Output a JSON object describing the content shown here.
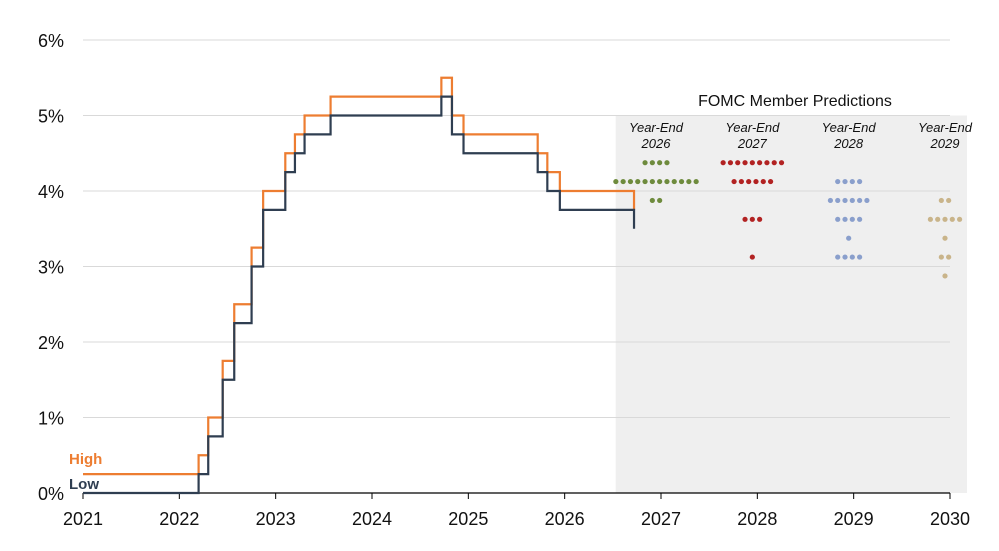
{
  "chart_data": {
    "type": "line",
    "title": "",
    "xlabel": "",
    "ylabel": "",
    "xlim": [
      2021,
      2030
    ],
    "ylim": [
      0,
      6
    ],
    "grid": true,
    "y_ticks": [
      "0%",
      "1%",
      "2%",
      "3%",
      "4%",
      "5%",
      "6%"
    ],
    "x_ticks": [
      "2021",
      "2022",
      "2023",
      "2024",
      "2025",
      "2026",
      "2027",
      "2028",
      "2029",
      "2030"
    ],
    "series": [
      {
        "name": "High",
        "color": "#ED7D31",
        "step_times": [
          2021.0,
          2022.2,
          2022.3,
          2022.45,
          2022.57,
          2022.75,
          2022.87,
          2023.1,
          2023.2,
          2023.3,
          2023.57,
          2024.72,
          2024.83,
          2024.95,
          2025.72,
          2025.82,
          2025.95,
          2026.72
        ],
        "values": [
          0.25,
          0.5,
          1.0,
          1.75,
          2.5,
          3.25,
          4.0,
          4.5,
          4.75,
          5.0,
          5.25,
          5.5,
          5.0,
          4.75,
          4.5,
          4.25,
          4.0,
          3.75,
          4.0
        ]
      },
      {
        "name": "Low",
        "color": "#2F3E51",
        "step_times": [
          2021.0,
          2022.2,
          2022.3,
          2022.45,
          2022.57,
          2022.75,
          2022.87,
          2023.1,
          2023.2,
          2023.3,
          2023.57,
          2024.72,
          2024.83,
          2024.95,
          2025.72,
          2025.82,
          2025.95,
          2026.72
        ],
        "values": [
          0.0,
          0.25,
          0.75,
          1.5,
          2.25,
          3.0,
          3.75,
          4.25,
          4.5,
          4.75,
          5.0,
          5.25,
          4.75,
          4.5,
          4.25,
          4.0,
          3.75,
          3.5,
          3.5
        ]
      }
    ],
    "projection_panel": {
      "title": "FOMC Member Predictions",
      "x_start": 2026.53,
      "groups": [
        {
          "label_line1": "Year-End",
          "label_line2": "2026",
          "x": 2027.0,
          "color": "#6E8B3D",
          "dots": [
            {
              "rate": 4.375,
              "count": 4
            },
            {
              "rate": 4.125,
              "count": 12
            },
            {
              "rate": 3.875,
              "count": 2
            }
          ]
        },
        {
          "label_line1": "Year-End",
          "label_line2": "2027",
          "x": 2028.0,
          "color": "#B22222",
          "dots": [
            {
              "rate": 4.375,
              "count": 9
            },
            {
              "rate": 4.125,
              "count": 6
            },
            {
              "rate": 3.625,
              "count": 3
            },
            {
              "rate": 3.125,
              "count": 1
            }
          ]
        },
        {
          "label_line1": "Year-End",
          "label_line2": "2028",
          "x": 2029.0,
          "color": "#8A9FCC",
          "dots": [
            {
              "rate": 4.125,
              "count": 4
            },
            {
              "rate": 3.875,
              "count": 6
            },
            {
              "rate": 3.625,
              "count": 4
            },
            {
              "rate": 3.375,
              "count": 1
            },
            {
              "rate": 3.125,
              "count": 4
            }
          ]
        },
        {
          "label_line1": "Year-End",
          "label_line2": "2029",
          "x": 2030.0,
          "color": "#C9B48A",
          "dots": [
            {
              "rate": 3.875,
              "count": 2
            },
            {
              "rate": 3.625,
              "count": 5
            },
            {
              "rate": 3.375,
              "count": 1
            },
            {
              "rate": 3.125,
              "count": 2
            },
            {
              "rate": 2.875,
              "count": 1
            }
          ]
        }
      ]
    }
  }
}
